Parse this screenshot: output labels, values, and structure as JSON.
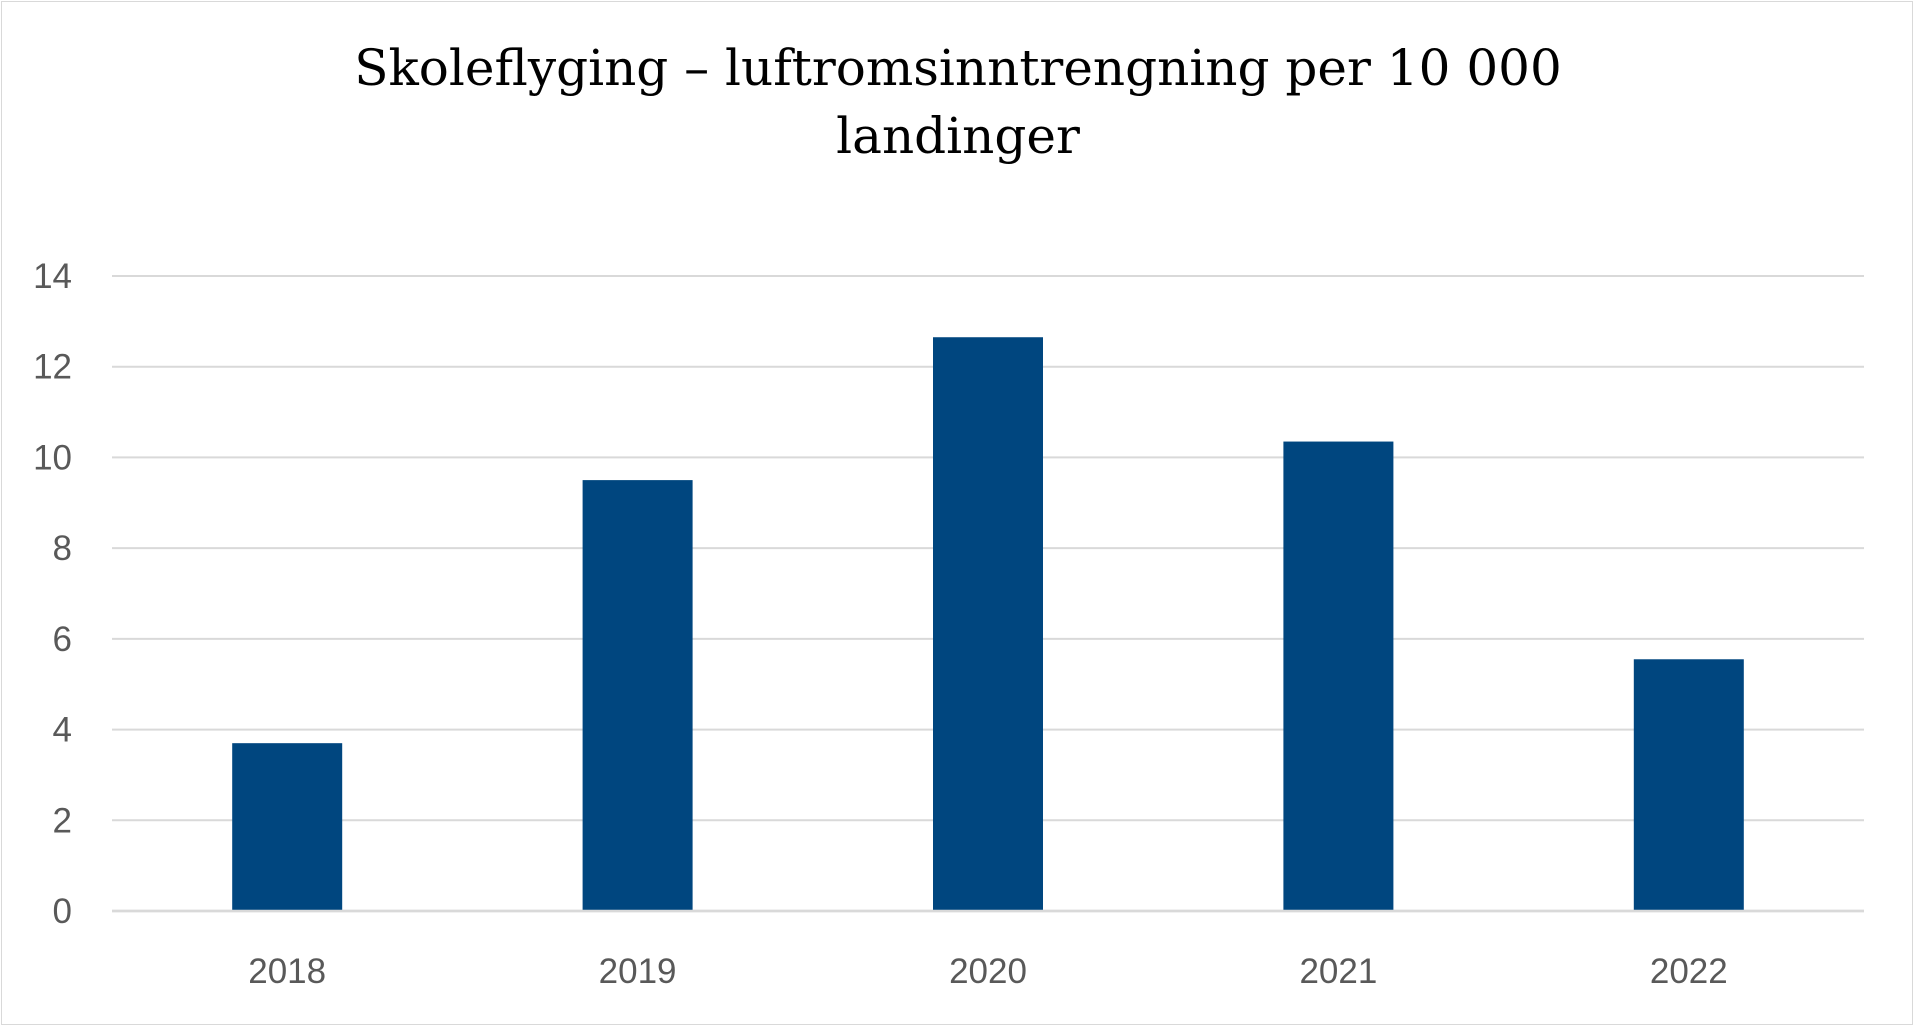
{
  "chart_data": {
    "type": "bar",
    "title_lines": [
      "Skoleflyging – luftromsinntrengning per 10 000",
      "landinger"
    ],
    "title": "Skoleflyging – luftromsinntrengning per 10 000 landinger",
    "categories": [
      "2018",
      "2019",
      "2020",
      "2021",
      "2022"
    ],
    "values": [
      3.7,
      9.5,
      12.65,
      10.35,
      5.55
    ],
    "ylim": [
      0,
      14
    ],
    "yticks": [
      "0",
      "2",
      "4",
      "6",
      "8",
      "10",
      "12",
      "14"
    ],
    "xlabel": "",
    "ylabel": "",
    "grid": true,
    "legend": "none",
    "bar_color": "#00467f",
    "grid_color": "#d9d9d9"
  }
}
